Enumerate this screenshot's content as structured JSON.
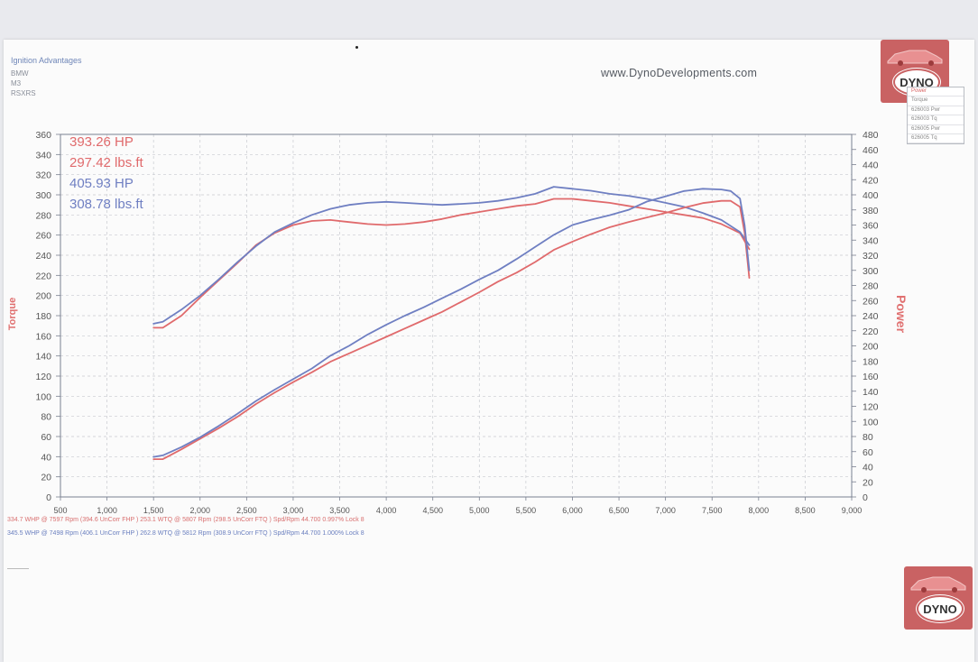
{
  "header": {
    "title": "Ignition Advantages",
    "lines": [
      "BMW",
      "M3",
      "RSXRS"
    ],
    "website": "www.DynoDevelopments.com"
  },
  "logo": {
    "text": "DYNO"
  },
  "legend": {
    "items": [
      "Power",
      "Torque",
      "626003 Pwr",
      "626003 Tq",
      "626005 Pwr",
      "626005 Tq"
    ]
  },
  "readouts": {
    "run1_hp": "393.26 HP",
    "run1_tq": "297.42 lbs.ft",
    "run2_hp": "405.93 HP",
    "run2_tq": "308.78 lbs.ft"
  },
  "footer": {
    "run1": "334.7 WHP @ 7597 Rpm (394.6 UnCorr FHP )  253.1 WTQ @ 5807 Rpm (298.5 UnCorr FTQ )  Spd/Rpm 44.700 0.997% Lock 8",
    "run2": "345.5 WHP @ 7498 Rpm (406.1 UnCorr FHP )  262.8 WTQ @ 5812 Rpm (308.9 UnCorr FTQ )  Spd/Rpm 44.700 1.000% Lock 8"
  },
  "colors": {
    "run1": "#e06a6c",
    "run2": "#6f7fc2",
    "axis": "#7a8090",
    "grid": "#c8cad0",
    "axis_title": "#e07070"
  },
  "chart_data": {
    "type": "line",
    "xlabel": "",
    "y_left_label": "Torque",
    "y_right_label": "Power",
    "xlim": [
      500,
      9000
    ],
    "ylim_left": [
      0,
      360
    ],
    "ylim_right": [
      0,
      480
    ],
    "x_ticks": [
      500,
      1000,
      1500,
      2000,
      2500,
      3000,
      3500,
      4000,
      4500,
      5000,
      5500,
      6000,
      6500,
      7000,
      7500,
      8000,
      8500,
      9000
    ],
    "x_tick_labels": [
      "500",
      "1,000",
      "1,500",
      "2,000",
      "2,500",
      "3,000",
      "3,500",
      "4,000",
      "4,500",
      "5,000",
      "5,500",
      "6,000",
      "6,500",
      "7,000",
      "7,500",
      "8,000",
      "8,500",
      "9,000"
    ],
    "y_left_ticks": [
      0,
      20,
      40,
      60,
      80,
      100,
      120,
      140,
      160,
      180,
      200,
      220,
      240,
      260,
      280,
      300,
      320,
      340,
      360
    ],
    "y_right_ticks": [
      0,
      20,
      40,
      60,
      80,
      100,
      120,
      140,
      160,
      180,
      200,
      220,
      240,
      260,
      280,
      300,
      320,
      340,
      360,
      380,
      400,
      420,
      440,
      460,
      480
    ],
    "grid": true,
    "series": [
      {
        "name": "626003 Tq",
        "axis": "left",
        "color_key": "run1",
        "x": [
          1500,
          1600,
          1800,
          2000,
          2200,
          2400,
          2600,
          2800,
          3000,
          3200,
          3400,
          3600,
          3800,
          4000,
          4200,
          4400,
          4600,
          4800,
          5000,
          5200,
          5400,
          5600,
          5800,
          6000,
          6200,
          6400,
          6600,
          6800,
          7000,
          7200,
          7400,
          7600,
          7800,
          7900
        ],
        "y": [
          168,
          168,
          180,
          198,
          215,
          232,
          250,
          262,
          270,
          274,
          275,
          273,
          271,
          270,
          271,
          273,
          276,
          280,
          283,
          286,
          289,
          291,
          296,
          296,
          294,
          292,
          289,
          286,
          283,
          280,
          277,
          271,
          262,
          246
        ]
      },
      {
        "name": "626005 Tq",
        "axis": "left",
        "color_key": "run2",
        "x": [
          1500,
          1600,
          1800,
          2000,
          2200,
          2400,
          2600,
          2800,
          3000,
          3200,
          3400,
          3600,
          3800,
          4000,
          4200,
          4400,
          4600,
          4800,
          5000,
          5200,
          5400,
          5600,
          5800,
          6000,
          6200,
          6400,
          6600,
          6800,
          7000,
          7200,
          7400,
          7600,
          7800,
          7900
        ],
        "y": [
          172,
          174,
          186,
          200,
          216,
          233,
          249,
          263,
          272,
          280,
          286,
          290,
          292,
          293,
          292,
          291,
          290,
          291,
          292,
          294,
          297,
          301,
          308,
          306,
          304,
          301,
          299,
          296,
          292,
          288,
          282,
          275,
          263,
          250
        ]
      },
      {
        "name": "626003 Pwr",
        "axis": "right",
        "color_key": "run1",
        "x": [
          1500,
          1600,
          1800,
          2000,
          2200,
          2400,
          2600,
          2800,
          3000,
          3200,
          3400,
          3600,
          3800,
          4000,
          4200,
          4400,
          4600,
          4800,
          5000,
          5200,
          5400,
          5600,
          5800,
          6000,
          6200,
          6400,
          6600,
          6800,
          7000,
          7200,
          7400,
          7600,
          7700,
          7800,
          7850,
          7900
        ],
        "y": [
          50,
          50,
          63,
          77,
          91,
          106,
          123,
          138,
          152,
          165,
          179,
          190,
          201,
          212,
          223,
          234,
          245,
          258,
          271,
          285,
          297,
          311,
          327,
          338,
          348,
          357,
          364,
          370,
          376,
          383,
          389,
          392,
          392,
          384,
          350,
          290
        ]
      },
      {
        "name": "626005 Pwr",
        "axis": "right",
        "color_key": "run2",
        "x": [
          1500,
          1600,
          1800,
          2000,
          2200,
          2400,
          2600,
          2800,
          3000,
          3200,
          3400,
          3600,
          3800,
          4000,
          4200,
          4400,
          4600,
          4800,
          5000,
          5200,
          5400,
          5600,
          5800,
          6000,
          6200,
          6400,
          6600,
          6800,
          7000,
          7200,
          7400,
          7600,
          7700,
          7800,
          7850,
          7900
        ],
        "y": [
          53,
          55,
          66,
          79,
          94,
          110,
          127,
          142,
          156,
          170,
          187,
          200,
          215,
          228,
          240,
          251,
          263,
          275,
          288,
          300,
          315,
          331,
          347,
          360,
          367,
          373,
          380,
          391,
          398,
          405,
          408,
          407,
          405,
          395,
          360,
          300
        ]
      }
    ]
  }
}
